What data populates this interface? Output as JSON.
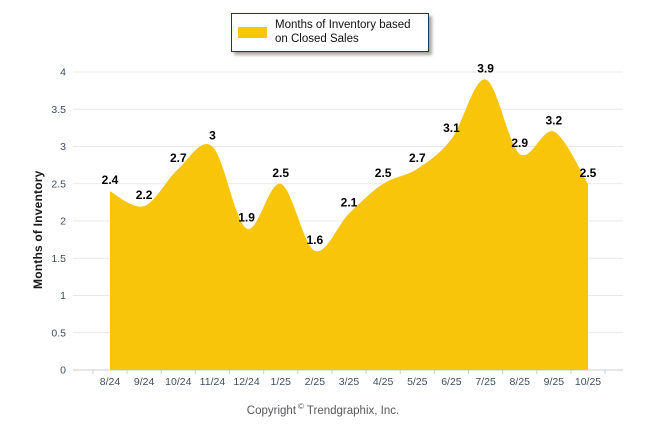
{
  "legend": {
    "label": "Months of Inventory based on Closed Sales"
  },
  "colors": {
    "series_fill": "#F8C50B",
    "legend_border": "#17375E",
    "grid": "#E9E9E9",
    "axis": "#C9CDD2",
    "tick_label": "#3F4D5E",
    "data_label": "#000000",
    "background": "#FFFFFF"
  },
  "chart_data": {
    "type": "area",
    "title": "",
    "categories": [
      "8/24",
      "9/24",
      "10/24",
      "11/24",
      "12/24",
      "1/25",
      "2/25",
      "3/25",
      "4/25",
      "5/25",
      "6/25",
      "7/25",
      "8/25",
      "9/25",
      "10/25"
    ],
    "values": [
      2.4,
      2.2,
      2.7,
      3,
      1.9,
      2.5,
      1.6,
      2.1,
      2.5,
      2.7,
      3.1,
      3.9,
      2.9,
      3.2,
      2.5
    ],
    "series_name": "Months of Inventory based on Closed Sales",
    "xlabel": "",
    "ylabel": "Months of Inventory",
    "ylim": [
      0,
      4
    ],
    "ytick_step": 0.5,
    "grid": true,
    "smooth": true,
    "data_labels": true,
    "legend_position": "top-center"
  },
  "footer": {
    "prefix": "Copyright",
    "symbol": "©",
    "suffix": "Trendgraphix, Inc."
  }
}
